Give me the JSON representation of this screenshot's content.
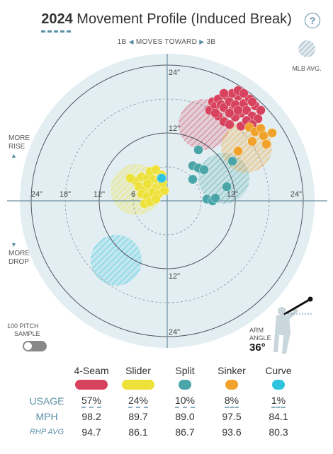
{
  "title": {
    "year": "2024",
    "text": "Movement Profile (Induced Break)"
  },
  "direction": {
    "left": "1B",
    "middle": "MOVES TOWARD",
    "right": "3B"
  },
  "side_labels": {
    "rise_1": "MORE",
    "rise_2": "RISE",
    "drop_1": "MORE",
    "drop_2": "DROP"
  },
  "mlb_avg_label": "MLB AVG.",
  "arm_angle": {
    "label_1": "ARM",
    "label_2": "ANGLE",
    "value": "36°"
  },
  "sample": {
    "line_1": "100 PITCH",
    "line_2": "SAMPLE",
    "enabled": false
  },
  "help_icon": "question-icon",
  "table": {
    "pitches": [
      "4-Seam",
      "Slider",
      "Split",
      "Sinker",
      "Curve"
    ],
    "row_labels": {
      "usage": "USAGE",
      "mph": "MPH",
      "rhp": "RHP AVG"
    },
    "usage": [
      "57%",
      "24%",
      "10%",
      "8%",
      "1%"
    ],
    "mph": [
      "98.2",
      "89.7",
      "89.0",
      "97.5",
      "84.1"
    ],
    "rhp_avg": [
      "94.7",
      "86.1",
      "86.7",
      "93.6",
      "80.3"
    ]
  },
  "chart_data": {
    "type": "scatter",
    "title": "2024 Movement Profile (Induced Break)",
    "x_axis": "horizontal break (in), toward 3B positive",
    "y_axis": "induced vertical break (in)",
    "xlim": [
      -24,
      24
    ],
    "ylim": [
      -24,
      24
    ],
    "rings": [
      6,
      12,
      18,
      24
    ],
    "tick_labels": {
      "x_left": [
        "24\"",
        "18\"",
        "12\"",
        "6"
      ],
      "x_right": [
        "12\"",
        "24\""
      ],
      "y_top": [
        "24\"",
        "12\""
      ],
      "y_bottom": [
        "12\"",
        "24\""
      ]
    },
    "series": [
      {
        "name": "4-Seam",
        "color": "#d7435e",
        "mlb_avg": {
          "x": 6.5,
          "y": 13.5,
          "r": 4.5
        },
        "points": [
          [
            7.5,
            16
          ],
          [
            8,
            17.5
          ],
          [
            8.5,
            16.8
          ],
          [
            9,
            18
          ],
          [
            9.5,
            17
          ],
          [
            10,
            16.5
          ],
          [
            10.5,
            18.5
          ],
          [
            11,
            17.5
          ],
          [
            11.5,
            16
          ],
          [
            12,
            17
          ],
          [
            12.5,
            18.5
          ],
          [
            13,
            15.5
          ],
          [
            13.5,
            17.2
          ],
          [
            14,
            16
          ],
          [
            14.5,
            18
          ],
          [
            15,
            15
          ],
          [
            15.5,
            16.8
          ],
          [
            16,
            14.5
          ],
          [
            9,
            15
          ],
          [
            10,
            14
          ],
          [
            11,
            13.5
          ],
          [
            12,
            14.8
          ],
          [
            13,
            13.2
          ],
          [
            14,
            14.2
          ],
          [
            15,
            13.5
          ],
          [
            16.5,
            16
          ],
          [
            11.5,
            19
          ],
          [
            12.5,
            19.5
          ],
          [
            10,
            19
          ],
          [
            13.5,
            19
          ],
          [
            8.5,
            15.5
          ],
          [
            15,
            17.5
          ],
          [
            11,
            15.5
          ],
          [
            12.5,
            16
          ]
        ]
      },
      {
        "name": "Slider",
        "color": "#ede13a",
        "mlb_avg": {
          "x": -5.5,
          "y": 2,
          "r": 4.5
        },
        "points": [
          [
            -5.5,
            3.5
          ],
          [
            -4.5,
            4.2
          ],
          [
            -3.5,
            4
          ],
          [
            -2.5,
            3.8
          ],
          [
            -1.5,
            3.5
          ],
          [
            -5,
            2.5
          ],
          [
            -4,
            2
          ],
          [
            -3,
            2.5
          ],
          [
            -2,
            2.2
          ],
          [
            -1,
            2.8
          ],
          [
            -4.5,
            1.2
          ],
          [
            -3.5,
            0.8
          ],
          [
            -2.5,
            1.5
          ],
          [
            -1.5,
            1.2
          ],
          [
            -0.5,
            1.8
          ],
          [
            -3,
            5.2
          ],
          [
            -2,
            5.5
          ],
          [
            -1,
            4.6
          ],
          [
            -6.5,
            4
          ],
          [
            -4,
            -0.5
          ],
          [
            -3,
            -0.2
          ],
          [
            -2,
            0.3
          ],
          [
            -3.5,
            3
          ],
          [
            -0.8,
            3.2
          ]
        ]
      },
      {
        "name": "Split",
        "color": "#4aa5a8",
        "mlb_avg": {
          "x": 10,
          "y": 4,
          "r": 4.5
        },
        "points": [
          [
            5.5,
            9
          ],
          [
            4.5,
            6.2
          ],
          [
            5.5,
            5.8
          ],
          [
            6.5,
            5.5
          ],
          [
            4.5,
            3.8
          ],
          [
            7,
            0.3
          ],
          [
            8,
            0
          ],
          [
            8.5,
            0.5
          ],
          [
            11.5,
            7
          ],
          [
            10.5,
            2.5
          ]
        ]
      },
      {
        "name": "Sinker",
        "color": "#f0a22a",
        "mlb_avg": {
          "x": 14,
          "y": 9.5,
          "r": 4.5
        },
        "points": [
          [
            14.5,
            13
          ],
          [
            15.5,
            12.2
          ],
          [
            16.5,
            12.8
          ],
          [
            17,
            11.5
          ],
          [
            18.5,
            12
          ],
          [
            15,
            10.5
          ],
          [
            17.5,
            10
          ],
          [
            12.5,
            8.8
          ]
        ]
      },
      {
        "name": "Curve",
        "color": "#2ec4e0",
        "mlb_avg": {
          "x": -9,
          "y": -10.5,
          "r": 4.5
        },
        "points": [
          [
            -1,
            4
          ]
        ]
      }
    ],
    "grid": true,
    "legend": "table below chart"
  }
}
